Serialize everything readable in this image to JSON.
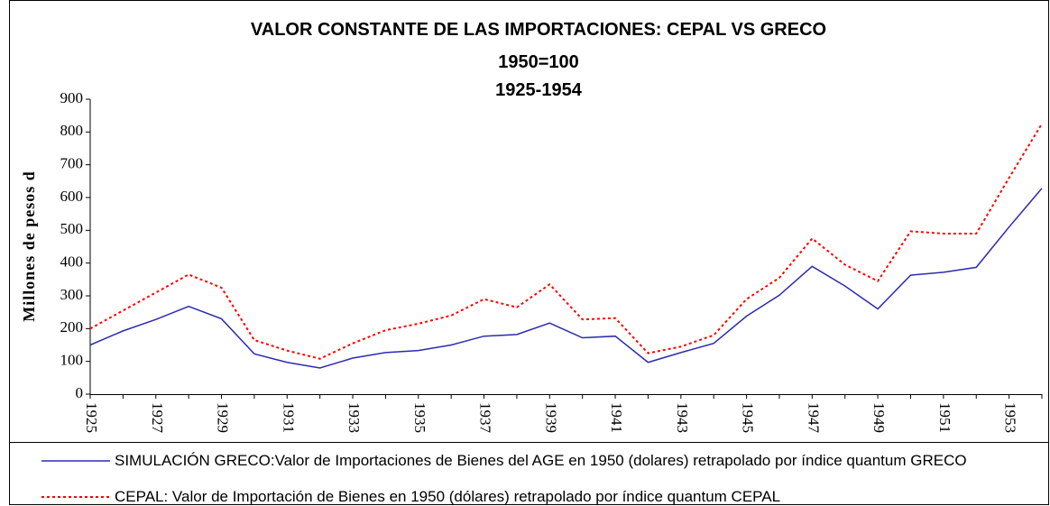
{
  "chart_data": {
    "type": "line",
    "title": "VALOR CONSTANTE DE LAS IMPORTACIONES: CEPAL VS GRECO",
    "subtitle": "1950=100",
    "subtitle2": "1925-1954",
    "y_label": "Millones de pesos d",
    "categories": [
      "1925",
      null,
      "1927",
      null,
      "1929",
      null,
      "1931",
      null,
      "1933",
      null,
      "1935",
      null,
      "1937",
      null,
      "1939",
      null,
      "1941",
      null,
      "1943",
      null,
      "1945",
      null,
      "1947",
      null,
      "1949",
      null,
      "1951",
      null,
      "1953",
      null
    ],
    "ylim": [
      0,
      900
    ],
    "yticks": [
      0,
      100,
      200,
      300,
      400,
      500,
      600,
      700,
      800,
      900
    ],
    "series": [
      {
        "name": "SIMULACIÓN GRECO:Valor de Importaciones de Bienes del AGE en 1950 (dolares) retrapolado por índice quantum GRECO",
        "color": "#2b2bb0",
        "dash": "solid",
        "values": [
          150,
          193,
          228,
          268,
          230,
          123,
          97,
          80,
          110,
          127,
          133,
          150,
          177,
          182,
          217,
          172,
          177,
          97,
          127,
          155,
          238,
          302,
          390,
          330,
          260,
          363,
          372,
          387,
          510,
          628
        ]
      },
      {
        "name": "CEPAL: Valor de Importación de Bienes en 1950 (dólares) retrapolado por índice quantum CEPAL",
        "color": "#ff0000",
        "dash": "dotted",
        "values": [
          200,
          255,
          310,
          365,
          325,
          165,
          133,
          108,
          155,
          195,
          215,
          240,
          290,
          265,
          335,
          228,
          232,
          125,
          145,
          180,
          290,
          355,
          475,
          395,
          345,
          497,
          490,
          490,
          660,
          825
        ]
      }
    ]
  }
}
